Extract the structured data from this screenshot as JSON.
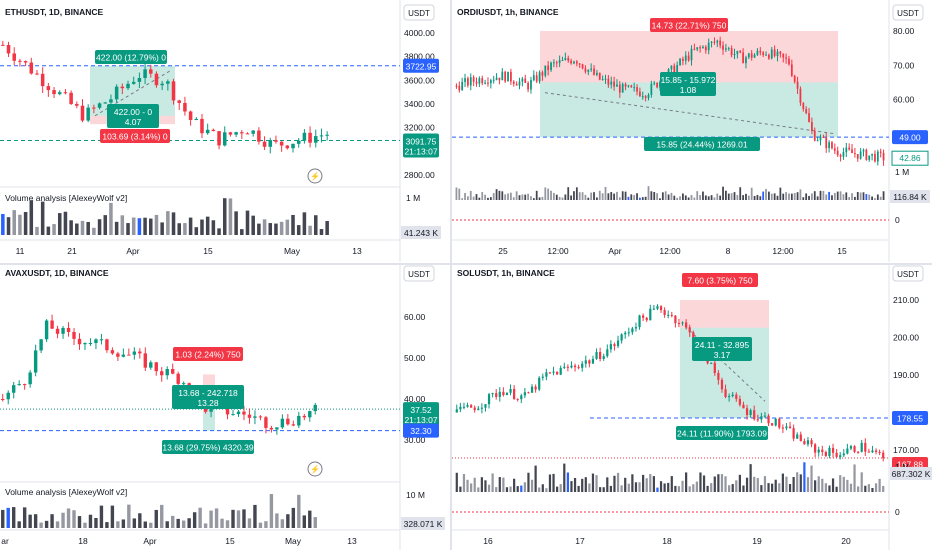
{
  "panels": [
    {
      "id": "eth",
      "title": "ETHUSDT, 1D, BINANCE",
      "currency": "USDT",
      "price_ticks": [
        "4000.00",
        "3800.00",
        "3600.00",
        "3400.00",
        "3200.00",
        "2800.00"
      ],
      "time_ticks": [
        "11",
        "21",
        "Apr",
        "15",
        "May",
        "13"
      ],
      "lines": {
        "blue": "3722.95",
        "green": "3091.75",
        "green_sub": "21:13:07"
      },
      "volume_label": "1 M",
      "volume_value": "41.243 K",
      "indicator": "Volume analysis [AlexeyWolf v2]",
      "labels": {
        "top": "422.00 (12.79%) 0",
        "mid": "422.00 - 0",
        "mid2": "4.07",
        "red": "103.69 (3.14%) 0"
      }
    },
    {
      "id": "ordi",
      "title": "ORDIUSDT, 1h, BINANCE",
      "currency": "USDT",
      "price_ticks": [
        "80.00",
        "70.00",
        "60.00"
      ],
      "time_ticks": [
        "25",
        "12:00",
        "Apr",
        "12:00",
        "8",
        "12:00",
        "15"
      ],
      "lines": {
        "blue": "49.00",
        "green": "42.86"
      },
      "volume_label": "1 M",
      "volume_value": "116.84 K",
      "zero": "0",
      "labels": {
        "top": "14.73 (22.71%) 750",
        "mid": "15.85 - 15.972",
        "mid2": "1.08",
        "bottom": "15.85 (24.44%) 1269.01"
      }
    },
    {
      "id": "avax",
      "title": "AVAXUSDT, 1D, BINANCE",
      "currency": "USDT",
      "price_ticks": [
        "60.00",
        "50.00",
        "40.00",
        "30.00"
      ],
      "time_ticks": [
        "ar",
        "18",
        "Apr",
        "15",
        "May",
        "13"
      ],
      "lines": {
        "blue": "32.30",
        "green": "37.52",
        "green_sub": "21:13:07"
      },
      "volume_label": "10 M",
      "volume_value": "328.071 K",
      "indicator": "Volume analysis [AlexeyWolf v2]",
      "labels": {
        "top": "1.03 (2.24%) 750",
        "mid": "13.68 - 242.718",
        "mid2": "13.28",
        "bottom": "13.68 (29.75%) 4320.39"
      }
    },
    {
      "id": "sol",
      "title": "SOLUSDT, 1h, BINANCE",
      "currency": "USDT",
      "price_ticks": [
        "210.00",
        "200.00",
        "190.00",
        "170.00"
      ],
      "time_ticks": [
        "16",
        "17",
        "18",
        "19",
        "20"
      ],
      "lines": {
        "blue": "178.55",
        "red": "167.88"
      },
      "volume_label": "1 M",
      "volume_value": "687.302 K",
      "zero": "0",
      "labels": {
        "top": "7.60 (3.75%) 750",
        "mid": "24.11 - 32.895",
        "mid2": "3.17",
        "bottom": "24.11 (11.90%) 1793.09"
      }
    }
  ],
  "colors": {
    "up": "#089981",
    "down": "#f23645",
    "blue": "#2962ff",
    "vol_gray": "#9598a1",
    "vol_dark": "#434651"
  }
}
